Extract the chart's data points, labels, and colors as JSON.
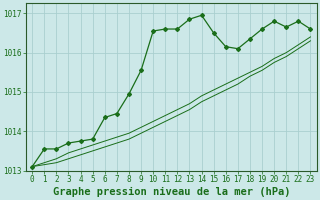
{
  "background_color": "#cce8e8",
  "grid_color": "#aacfcf",
  "line_color": "#1a6e1a",
  "marker_color": "#1a6e1a",
  "title": "Graphe pression niveau de la mer (hPa)",
  "title_fontsize": 7.5,
  "ylim": [
    1013.0,
    1017.25
  ],
  "xlim": [
    -0.5,
    23.5
  ],
  "yticks": [
    1013,
    1014,
    1015,
    1016,
    1017
  ],
  "xticks": [
    0,
    1,
    2,
    3,
    4,
    5,
    6,
    7,
    8,
    9,
    10,
    11,
    12,
    13,
    14,
    15,
    16,
    17,
    18,
    19,
    20,
    21,
    22,
    23
  ],
  "series1_x": [
    0,
    1,
    2,
    3,
    4,
    5,
    6,
    7,
    8,
    9,
    10,
    11,
    12,
    13,
    14,
    15,
    16,
    17,
    18,
    19,
    20,
    21,
    22,
    23
  ],
  "series1_y": [
    1013.1,
    1013.55,
    1013.55,
    1013.7,
    1013.75,
    1013.8,
    1014.35,
    1014.45,
    1014.95,
    1015.55,
    1016.55,
    1016.6,
    1016.6,
    1016.85,
    1016.95,
    1016.5,
    1016.15,
    1016.1,
    1016.35,
    1016.6,
    1016.8,
    1016.65,
    1016.8,
    1016.6
  ],
  "series2_x": [
    0,
    1,
    2,
    3,
    4,
    5,
    6,
    7,
    8,
    9,
    10,
    11,
    12,
    13,
    14,
    15,
    16,
    17,
    18,
    19,
    20,
    21,
    22,
    23
  ],
  "series2_y": [
    1013.1,
    1013.2,
    1013.3,
    1013.45,
    1013.55,
    1013.65,
    1013.75,
    1013.85,
    1013.95,
    1014.1,
    1014.25,
    1014.4,
    1014.55,
    1014.7,
    1014.9,
    1015.05,
    1015.2,
    1015.35,
    1015.5,
    1015.65,
    1015.85,
    1016.0,
    1016.2,
    1016.4
  ],
  "series3_x": [
    0,
    1,
    2,
    3,
    4,
    5,
    6,
    7,
    8,
    9,
    10,
    11,
    12,
    13,
    14,
    15,
    16,
    17,
    18,
    19,
    20,
    21,
    22,
    23
  ],
  "series3_y": [
    1013.1,
    1013.15,
    1013.2,
    1013.3,
    1013.4,
    1013.5,
    1013.6,
    1013.7,
    1013.8,
    1013.95,
    1014.1,
    1014.25,
    1014.4,
    1014.55,
    1014.75,
    1014.9,
    1015.05,
    1015.2,
    1015.4,
    1015.55,
    1015.75,
    1015.9,
    1016.1,
    1016.3
  ],
  "font_family": "monospace",
  "tick_fontsize": 5.5,
  "title_fontstyle": "bold"
}
